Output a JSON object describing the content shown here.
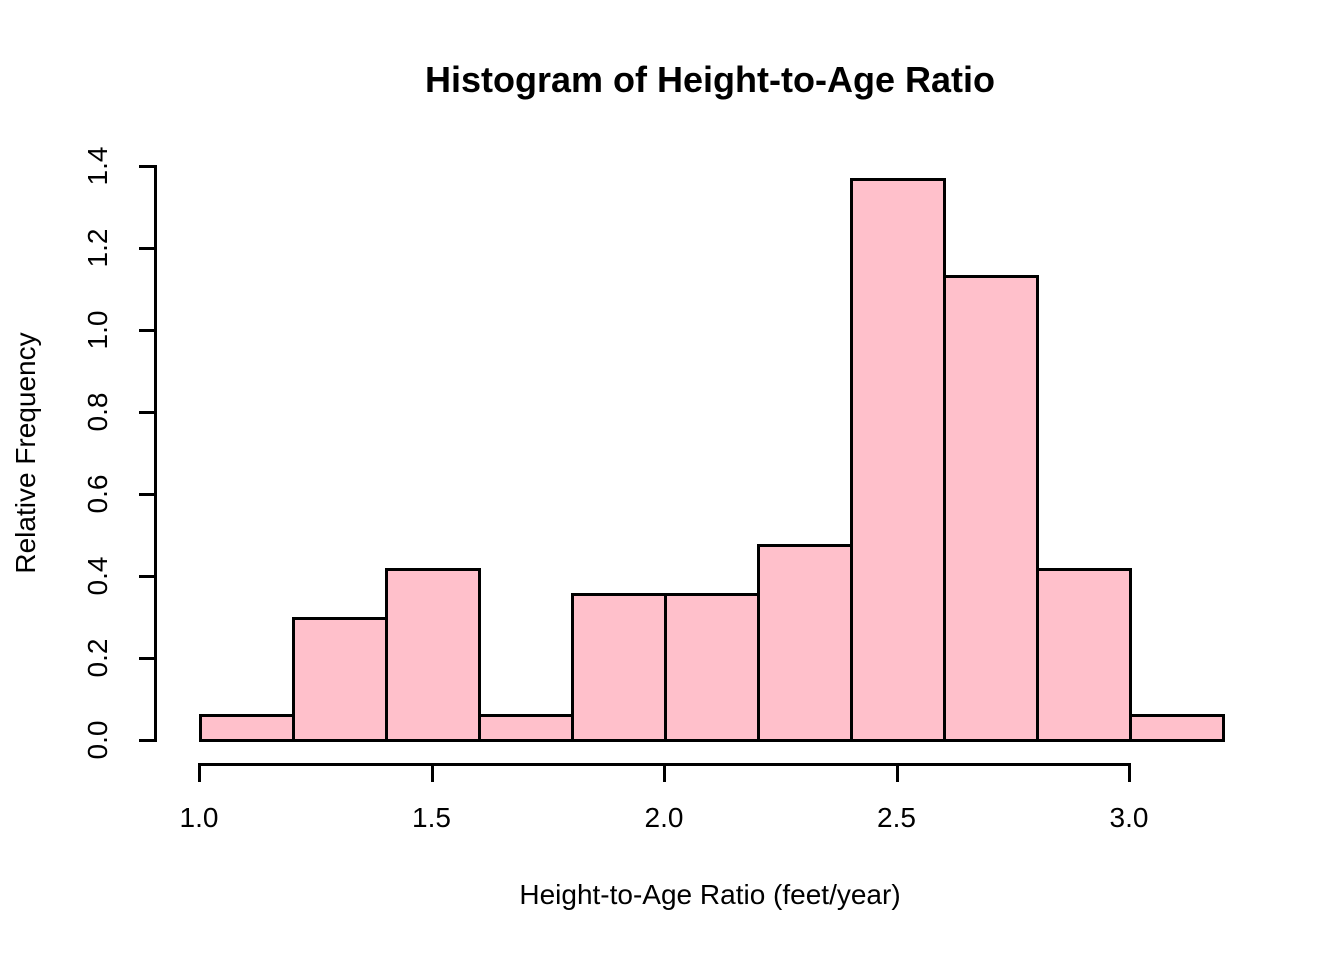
{
  "chart_data": {
    "type": "bar",
    "subtype": "histogram",
    "title": "Histogram of Height-to-Age Ratio",
    "xlabel": "Height-to-Age Ratio (feet/year)",
    "ylabel": "Relative Frequency",
    "bin_edges": [
      1.0,
      1.2,
      1.4,
      1.6,
      1.8,
      2.0,
      2.2,
      2.4,
      2.6,
      2.8,
      3.0,
      3.2
    ],
    "densities": [
      0.06,
      0.298,
      0.417,
      0.06,
      0.357,
      0.357,
      0.476,
      1.369,
      1.131,
      0.417,
      0.06
    ],
    "x_ticks": {
      "values": [
        1.0,
        1.5,
        2.0,
        2.5,
        3.0
      ],
      "labels": [
        "1.0",
        "1.5",
        "2.0",
        "2.5",
        "3.0"
      ]
    },
    "y_ticks": {
      "values": [
        0.0,
        0.2,
        0.4,
        0.6,
        0.8,
        1.0,
        1.2,
        1.4
      ],
      "labels": [
        "0.0",
        "0.2",
        "0.4",
        "0.6",
        "0.8",
        "1.0",
        "1.2",
        "1.4"
      ]
    },
    "xlim": [
      1.0,
      3.2
    ],
    "ylim": [
      0.0,
      1.4
    ],
    "grid": false,
    "legend": false,
    "colors": {
      "bar_fill": "#FFC0CB",
      "bar_border": "#000000",
      "axis": "#000000",
      "text": "#000000",
      "background": "#FFFFFF"
    }
  }
}
